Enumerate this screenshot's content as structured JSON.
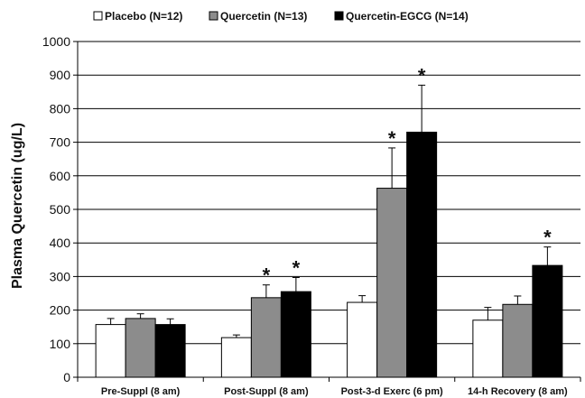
{
  "chart_data": {
    "type": "bar",
    "title": "",
    "xlabel": "",
    "ylabel": "Plasma Quercetin (ug/L)",
    "ylim": [
      0,
      1000
    ],
    "yticks": [
      0,
      100,
      200,
      300,
      400,
      500,
      600,
      700,
      800,
      900,
      1000
    ],
    "grid": true,
    "legend_position": "top",
    "categories": [
      "Pre-Suppl (8 am)",
      "Post-Suppl (8 am)",
      "Post-3-d Exerc (6 pm)",
      "14-h Recovery (8 am)"
    ],
    "series": [
      {
        "name": "Placebo (N=12)",
        "color": "#ffffff",
        "values": [
          157,
          118,
          223,
          170
        ],
        "errors": [
          18,
          8,
          20,
          38
        ],
        "significant": [
          false,
          false,
          false,
          false
        ]
      },
      {
        "name": "Quercetin (N=13)",
        "color": "#8c8c8c",
        "values": [
          175,
          237,
          563,
          217
        ],
        "errors": [
          14,
          38,
          120,
          25
        ],
        "significant": [
          false,
          true,
          true,
          false
        ]
      },
      {
        "name": "Quercetin-EGCG (N=14)",
        "color": "#000000",
        "values": [
          157,
          255,
          730,
          333
        ],
        "errors": [
          17,
          42,
          140,
          55
        ],
        "significant": [
          false,
          true,
          true,
          true
        ]
      }
    ],
    "annotation_marker": "*"
  }
}
